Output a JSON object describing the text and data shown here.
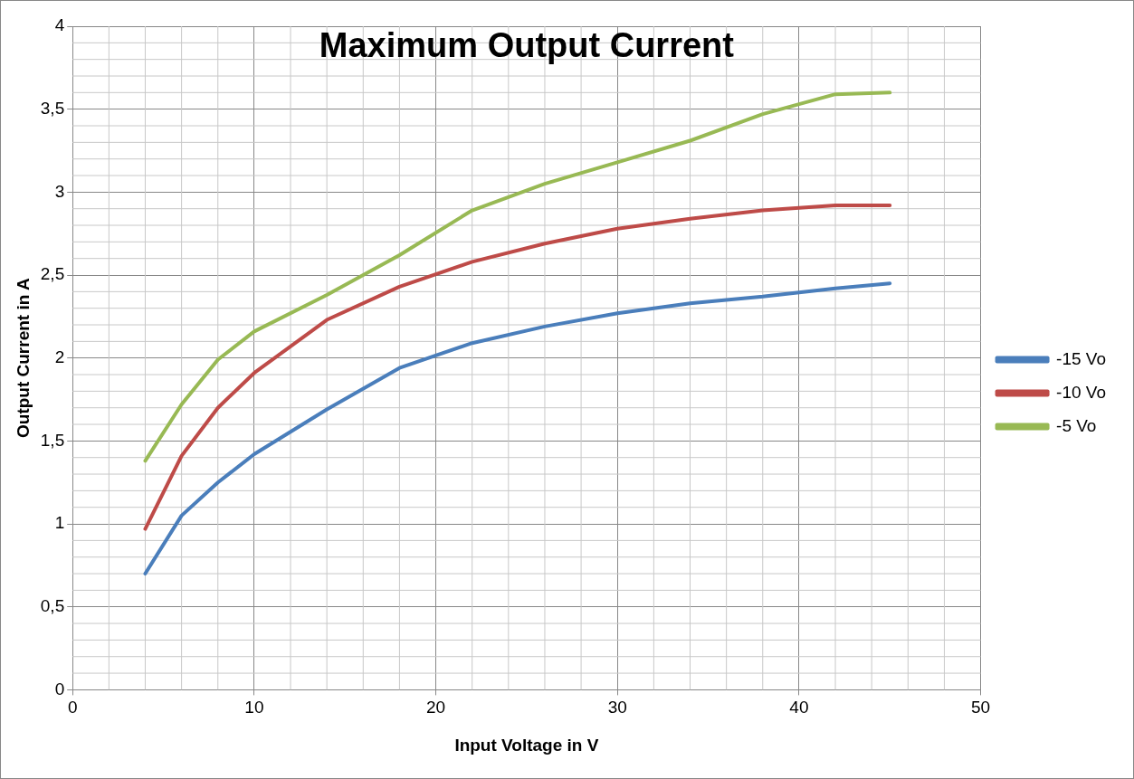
{
  "chart_data": {
    "type": "line",
    "title": "Maximum Output Current",
    "xlabel": "Input Voltage in V",
    "ylabel": "Output Current in A",
    "x": [
      4,
      6,
      8,
      10,
      14,
      18,
      22,
      26,
      30,
      34,
      38,
      42,
      45
    ],
    "series": [
      {
        "name": "-15 Vo",
        "color": "#4a7ebb",
        "values": [
          0.7,
          1.05,
          1.25,
          1.42,
          1.69,
          1.94,
          2.09,
          2.19,
          2.27,
          2.33,
          2.37,
          2.42,
          2.45
        ]
      },
      {
        "name": "-10 Vo",
        "color": "#be4b48",
        "values": [
          0.97,
          1.41,
          1.7,
          1.91,
          2.23,
          2.43,
          2.58,
          2.69,
          2.78,
          2.84,
          2.89,
          2.92,
          2.92
        ]
      },
      {
        "name": "-5 Vo",
        "color": "#98b954",
        "values": [
          1.38,
          1.72,
          1.99,
          2.16,
          2.38,
          2.62,
          2.89,
          3.05,
          3.18,
          3.31,
          3.47,
          3.59,
          3.6
        ]
      }
    ],
    "xlim": [
      0,
      50
    ],
    "xticks": [
      0,
      10,
      20,
      30,
      40,
      50
    ],
    "ylim": [
      0,
      4
    ],
    "yticks": [
      0,
      {
        "value": 0.5,
        "label": "0,5"
      },
      1,
      {
        "value": 1.5,
        "label": "1,5"
      },
      2,
      {
        "value": 2.5,
        "label": "2,5"
      },
      3,
      {
        "value": 3.5,
        "label": "3,5"
      },
      4
    ],
    "grid": true,
    "legend": "right",
    "marker": "none",
    "line_style": "solid"
  }
}
